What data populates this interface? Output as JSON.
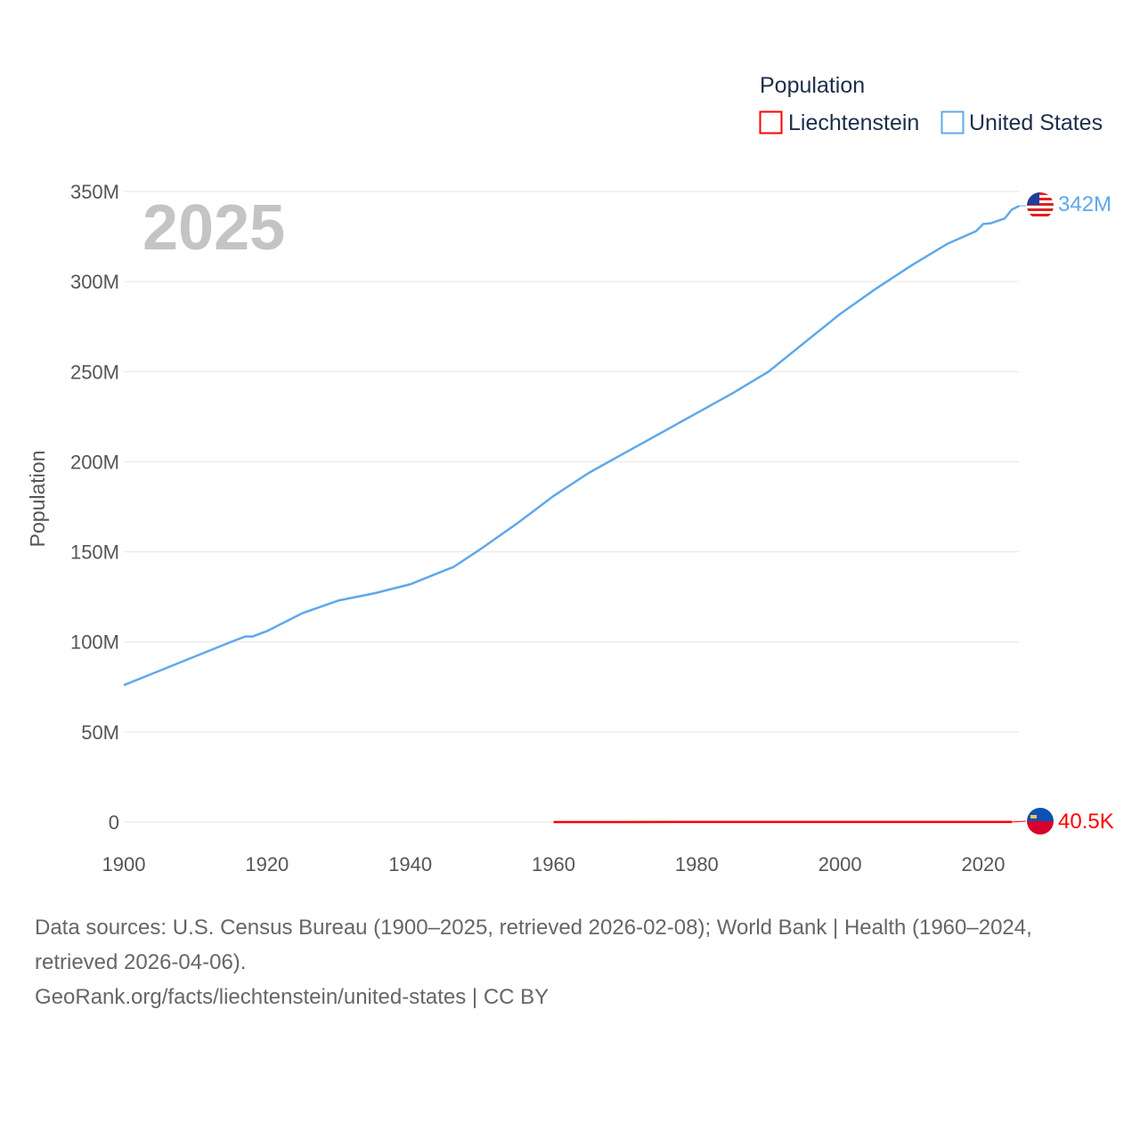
{
  "chart_data": {
    "type": "line",
    "title": "",
    "year_label": "2025",
    "xlabel": "",
    "ylabel": "Population",
    "xlim": [
      1900,
      2025
    ],
    "ylim": [
      0,
      350000000
    ],
    "x_ticks": [
      "1900",
      "1920",
      "1940",
      "1960",
      "1980",
      "2000",
      "2020"
    ],
    "y_ticks": [
      {
        "v": 0,
        "label": "0"
      },
      {
        "v": 50000000,
        "label": "50M"
      },
      {
        "v": 100000000,
        "label": "100M"
      },
      {
        "v": 150000000,
        "label": "150M"
      },
      {
        "v": 200000000,
        "label": "200M"
      },
      {
        "v": 250000000,
        "label": "250M"
      },
      {
        "v": 300000000,
        "label": "300M"
      },
      {
        "v": 350000000,
        "label": "350M"
      }
    ],
    "grid": true,
    "legend": {
      "title": "Population",
      "position": "top-right"
    },
    "series": [
      {
        "name": "Liechtenstein",
        "color": "#ff0000",
        "end_label": "40.5K",
        "flag": "liechtenstein-flag",
        "points": [
          [
            1960,
            16500
          ],
          [
            1970,
            21000
          ],
          [
            1980,
            25000
          ],
          [
            1990,
            29000
          ],
          [
            2000,
            33000
          ],
          [
            2010,
            36000
          ],
          [
            2020,
            39000
          ],
          [
            2024,
            40500
          ]
        ]
      },
      {
        "name": "United States",
        "color": "#5fa8ea",
        "end_label": "342M",
        "flag": "us-flag",
        "points": [
          [
            1900,
            76000000
          ],
          [
            1905,
            84000000
          ],
          [
            1910,
            92000000
          ],
          [
            1915,
            100000000
          ],
          [
            1917,
            103000000
          ],
          [
            1918,
            103000000
          ],
          [
            1920,
            106000000
          ],
          [
            1925,
            116000000
          ],
          [
            1930,
            123000000
          ],
          [
            1935,
            127000000
          ],
          [
            1940,
            132000000
          ],
          [
            1945,
            140000000
          ],
          [
            1946,
            141500000
          ],
          [
            1950,
            152000000
          ],
          [
            1955,
            166000000
          ],
          [
            1960,
            181000000
          ],
          [
            1965,
            194000000
          ],
          [
            1970,
            205000000
          ],
          [
            1975,
            216000000
          ],
          [
            1980,
            227000000
          ],
          [
            1985,
            238000000
          ],
          [
            1990,
            250000000
          ],
          [
            1995,
            266000000
          ],
          [
            2000,
            282000000
          ],
          [
            2005,
            296000000
          ],
          [
            2010,
            309000000
          ],
          [
            2015,
            321000000
          ],
          [
            2019,
            328000000
          ],
          [
            2020,
            332000000
          ],
          [
            2021,
            332300000
          ],
          [
            2023,
            335000000
          ],
          [
            2024,
            340000000
          ],
          [
            2025,
            342000000
          ]
        ]
      }
    ]
  },
  "footer": {
    "sources": "Data sources: U.S. Census Bureau (1900–2025, retrieved 2026-02-08); World Bank | Health (1960–2024, retrieved 2026-04-06).",
    "link": "GeoRank.org/facts/liechtenstein/united-states | CC BY"
  }
}
